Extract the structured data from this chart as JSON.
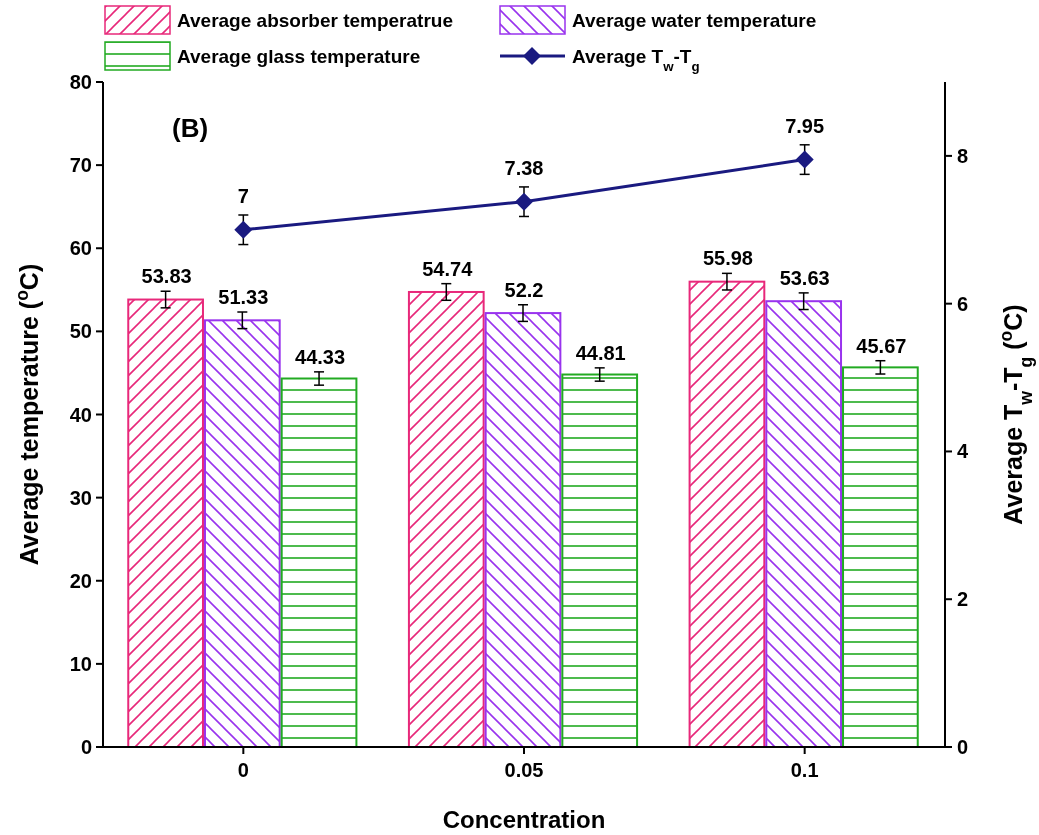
{
  "chart_data": {
    "type": "bar",
    "categories": [
      "0",
      "0.05",
      "0.1"
    ],
    "xlabel": "Concentration",
    "ylabel": "Average temperature ($^{o}$C)",
    "y2label": "Average T$_{w}$-T$_{g}$ ($^{o}$C)",
    "annotations": [
      "(B)"
    ],
    "ylim": [
      0,
      80
    ],
    "yticks": [
      0,
      10,
      20,
      30,
      40,
      50,
      60,
      70,
      80
    ],
    "y2lim": [
      0,
      9
    ],
    "y2ticks": [
      0,
      2,
      4,
      6,
      8
    ],
    "series": [
      {
        "name": "Average absorber temperatrue",
        "color": "#e8287a",
        "values": [
          53.83,
          54.74,
          55.98
        ],
        "errors": [
          1,
          1,
          1
        ]
      },
      {
        "name": "Average water temperature",
        "color": "#9933ee",
        "values": [
          51.33,
          52.2,
          53.63
        ],
        "errors": [
          1,
          1,
          1
        ]
      },
      {
        "name": "Average glass temperature",
        "color": "#22aa22",
        "values": [
          44.33,
          44.81,
          45.67
        ],
        "errors": [
          0.8,
          0.8,
          0.8
        ]
      },
      {
        "name": "Average T$_{w}$-T$_{g}$",
        "type": "line",
        "axis": "y2",
        "color": "#1a1a80",
        "values": [
          7,
          7.38,
          7.95
        ],
        "errors": [
          0.2,
          0.2,
          0.2
        ],
        "marker": "diamond",
        "line_style": "solid"
      }
    ],
    "data_labels": true,
    "legend": "top",
    "grid": false
  }
}
